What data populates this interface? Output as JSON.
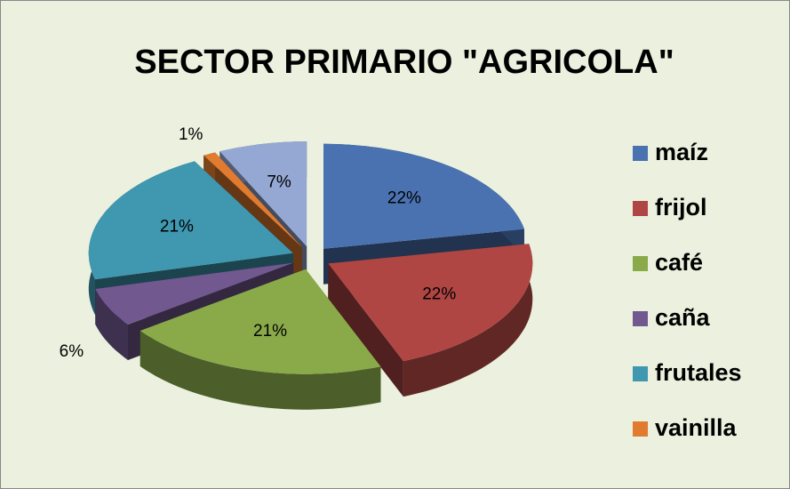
{
  "chart_data": {
    "type": "pie3d",
    "title": "SECTOR PRIMARIO \"AGRICOLA\"",
    "categories": [
      "maíz",
      "frijol",
      "café",
      "caña",
      "frutales",
      "vainilla",
      null
    ],
    "values": [
      22,
      22,
      21,
      6,
      21,
      1,
      7
    ],
    "value_labels": [
      "22%",
      "22%",
      "21%",
      "6%",
      "21%",
      "1%",
      "7%"
    ],
    "colors": [
      "#4a72b0",
      "#b04644",
      "#8aaa4a",
      "#71588f",
      "#3f97b0",
      "#e07b2f",
      "#95a8d4"
    ],
    "legend": "right"
  }
}
